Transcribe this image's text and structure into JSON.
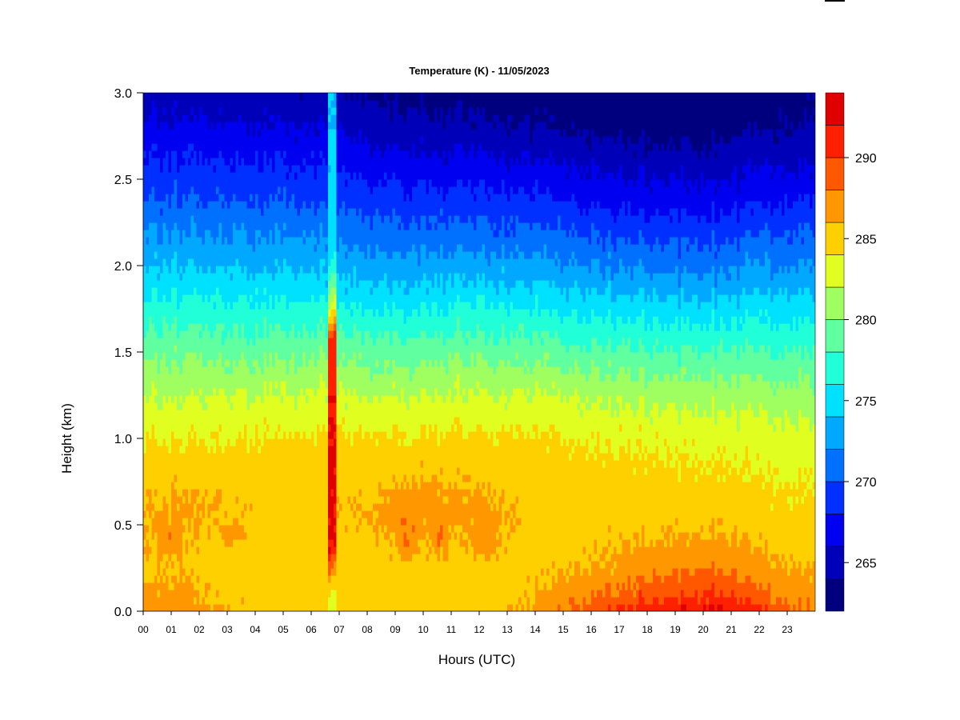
{
  "chart_data": {
    "type": "heatmap",
    "title": "Temperature (K) - 11/05/2023",
    "xlabel": "Hours (UTC)",
    "ylabel": "Height (km)",
    "x_ticks": [
      "00",
      "01",
      "02",
      "03",
      "04",
      "05",
      "06",
      "07",
      "08",
      "09",
      "10",
      "11",
      "12",
      "13",
      "14",
      "15",
      "16",
      "17",
      "18",
      "19",
      "20",
      "21",
      "22",
      "23"
    ],
    "x_range": [
      0,
      24
    ],
    "y_ticks": [
      "0.0",
      "0.5",
      "1.0",
      "1.5",
      "2.0",
      "2.5",
      "3.0"
    ],
    "y_range": [
      0,
      3
    ],
    "colorbar": {
      "ticks": [
        "265",
        "270",
        "275",
        "280",
        "285",
        "290"
      ],
      "range": [
        262,
        294
      ],
      "levels": [
        262,
        264,
        266,
        268,
        270,
        272,
        274,
        276,
        278,
        280,
        282,
        284,
        286,
        288,
        290,
        292,
        294
      ],
      "colors": [
        "#00007F",
        "#0000B8",
        "#0000F0",
        "#0030FF",
        "#0070FF",
        "#00A8FF",
        "#00E0FF",
        "#20FFD8",
        "#60FFA0",
        "#A0FF60",
        "#E0FF20",
        "#FFD000",
        "#FF9800",
        "#FF5800",
        "#FF2000",
        "#E00000",
        "#8A0000"
      ]
    },
    "profile_heights_km": [
      0.0,
      0.1,
      0.3,
      0.6,
      1.0,
      1.3,
      1.6,
      2.0,
      2.4,
      2.8,
      3.0
    ],
    "profiles": [
      {
        "hour": 0.0,
        "temps_k": [
          287.0,
          286.5,
          285.6,
          286.2,
          284.0,
          281.6,
          278.5,
          274.0,
          270.0,
          266.5,
          265.0
        ]
      },
      {
        "hour": 1.0,
        "temps_k": [
          287.2,
          286.5,
          285.8,
          286.5,
          284.0,
          281.5,
          278.4,
          274.0,
          270.0,
          266.4,
          264.8
        ]
      },
      {
        "hour": 3.0,
        "temps_k": [
          286.0,
          285.5,
          285.0,
          285.8,
          284.0,
          281.5,
          278.2,
          273.8,
          269.8,
          266.2,
          264.6
        ]
      },
      {
        "hour": 5.0,
        "temps_k": [
          285.0,
          285.0,
          285.0,
          285.4,
          284.2,
          281.6,
          278.2,
          273.6,
          269.6,
          266.0,
          264.4
        ]
      },
      {
        "hour": 6.5,
        "temps_k": [
          285.2,
          285.0,
          285.0,
          285.6,
          284.4,
          281.8,
          278.2,
          273.4,
          269.4,
          265.8,
          264.2
        ]
      },
      {
        "hour": 8.0,
        "temps_k": [
          285.0,
          285.0,
          285.2,
          286.0,
          284.3,
          281.6,
          278.0,
          273.0,
          269.0,
          265.2,
          263.8
        ]
      },
      {
        "hour": 9.3,
        "temps_k": [
          285.0,
          285.0,
          285.5,
          287.2,
          284.4,
          281.5,
          278.0,
          272.8,
          268.6,
          264.8,
          263.5
        ]
      },
      {
        "hour": 12.0,
        "temps_k": [
          285.0,
          285.0,
          285.5,
          286.6,
          284.5,
          281.8,
          278.2,
          273.0,
          268.6,
          264.6,
          263.3
        ]
      },
      {
        "hour": 14.0,
        "temps_k": [
          286.8,
          285.8,
          285.2,
          285.5,
          284.3,
          281.6,
          277.8,
          272.5,
          268.0,
          264.0,
          262.9
        ]
      },
      {
        "hour": 16.0,
        "temps_k": [
          289.2,
          287.8,
          285.8,
          285.3,
          284.0,
          281.2,
          277.4,
          272.0,
          267.5,
          263.6,
          262.6
        ]
      },
      {
        "hour": 18.0,
        "temps_k": [
          291.6,
          289.2,
          286.6,
          285.0,
          283.8,
          280.8,
          277.0,
          271.6,
          267.0,
          263.2,
          262.3
        ]
      },
      {
        "hour": 20.5,
        "temps_k": [
          292.6,
          290.4,
          287.4,
          285.0,
          283.6,
          280.6,
          276.8,
          271.4,
          266.8,
          263.0,
          262.2
        ]
      },
      {
        "hour": 22.0,
        "temps_k": [
          290.2,
          288.4,
          286.2,
          284.6,
          283.2,
          280.4,
          277.0,
          272.0,
          267.4,
          263.6,
          262.8
        ]
      },
      {
        "hour": 24.0,
        "temps_k": [
          287.8,
          287.0,
          285.6,
          284.4,
          283.0,
          280.4,
          277.0,
          272.4,
          268.0,
          264.4,
          263.6
        ]
      }
    ],
    "anomaly_column": {
      "hour_start": 6.65,
      "hour_end": 6.92,
      "heights_km": [
        0.0,
        0.1,
        0.4,
        0.9,
        1.3,
        1.6,
        1.8,
        2.1,
        3.0
      ],
      "temps_k": [
        282.5,
        282.5,
        292.0,
        292.4,
        291.6,
        290.8,
        282.0,
        275.0,
        274.0
      ]
    },
    "warm_patches": [
      {
        "hour": 0.9,
        "height_km": 0.45,
        "dh": 0.5,
        "dz": 0.12
      },
      {
        "hour": 3.2,
        "height_km": 0.45,
        "dh": 0.6,
        "dz": 0.08
      },
      {
        "hour": 9.4,
        "height_km": 0.45,
        "dh": 0.45,
        "dz": 0.15
      },
      {
        "hour": 10.6,
        "height_km": 0.45,
        "dh": 0.3,
        "dz": 0.12
      },
      {
        "hour": 12.2,
        "height_km": 0.45,
        "dh": 0.45,
        "dz": 0.15
      }
    ]
  }
}
